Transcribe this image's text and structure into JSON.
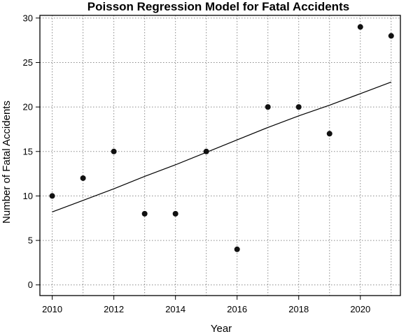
{
  "chart_data": {
    "type": "scatter",
    "title": "Poisson Regression Model for Fatal Accidents",
    "xlabel": "Year",
    "ylabel": "Number of Fatal Accidents",
    "xlim": [
      2009.6,
      2021.3
    ],
    "ylim": [
      -1.2,
      30.3
    ],
    "x_ticks": [
      2010,
      2012,
      2014,
      2016,
      2018,
      2020
    ],
    "x_tick_labels": [
      "2010",
      "2012",
      "2014",
      "2016",
      "2018",
      "2020"
    ],
    "x_grid": [
      2010,
      2011,
      2012,
      2013,
      2014,
      2015,
      2016,
      2017,
      2018,
      2019,
      2020,
      2021
    ],
    "y_ticks": [
      0,
      5,
      10,
      15,
      20,
      25,
      30
    ],
    "y_tick_labels": [
      "0",
      "5",
      "10",
      "15",
      "20",
      "25",
      "30"
    ],
    "grid": true,
    "series": [
      {
        "x": [
          2010,
          2011,
          2012,
          2013,
          2014,
          2015,
          2016,
          2017,
          2018,
          2019,
          2020,
          2021
        ],
        "y": [
          10,
          12,
          15,
          8,
          8,
          15,
          4,
          20,
          20,
          17,
          29,
          28
        ]
      }
    ],
    "fit_line": {
      "x": [
        2010,
        2011,
        2012,
        2013,
        2014,
        2015,
        2016,
        2017,
        2018,
        2019,
        2020,
        2021
      ],
      "y": [
        8.2,
        9.5,
        10.8,
        12.2,
        13.5,
        14.9,
        16.3,
        17.7,
        19.0,
        20.2,
        21.5,
        22.8
      ]
    }
  }
}
